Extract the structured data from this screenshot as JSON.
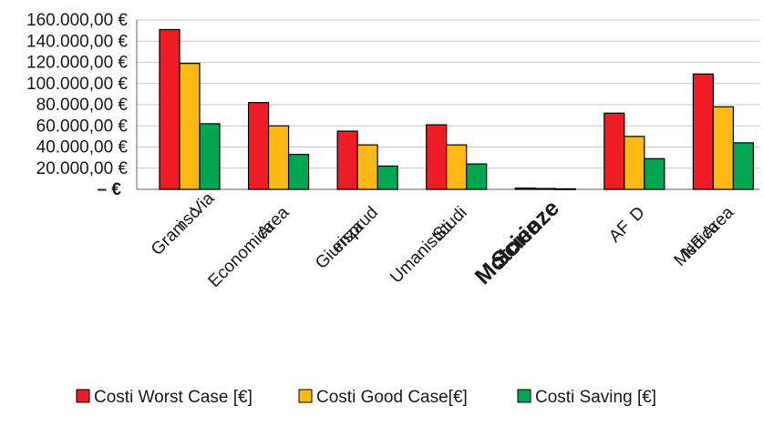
{
  "chart_data": {
    "type": "bar",
    "title": "",
    "xlabel": "",
    "ylabel": "",
    "categories": [
      [
        "Via",
        "Gramsc",
        "i"
      ],
      [
        "Area",
        "Economica"
      ],
      [
        "Giurisprud",
        "enza"
      ],
      [
        "Studi",
        "Umanistici"
      ],
      [
        "Scienze",
        "Motorie"
      ],
      [
        "D",
        "AF"
      ],
      [
        "NE Area",
        "Medica"
      ]
    ],
    "series": [
      {
        "name": "Costi Worst Case [€]",
        "color": "#ee1c25",
        "values": [
          151000,
          82000,
          55000,
          61000,
          1200,
          72000,
          109000
        ]
      },
      {
        "name": "Costi Good Case[€]",
        "color": "#fdb813",
        "values": [
          119000,
          60000,
          42000,
          42000,
          800,
          50000,
          78000
        ]
      },
      {
        "name": "Costi Saving [€]",
        "color": "#00a651",
        "values": [
          62000,
          33000,
          22000,
          24000,
          500,
          29000,
          44000
        ]
      }
    ],
    "ylim": [
      0,
      160000
    ],
    "yticks": [
      {
        "value": 160000,
        "label": "160.000,00 €"
      },
      {
        "value": 140000,
        "label": "140.000,00 €"
      },
      {
        "value": 120000,
        "label": "120.000,00 €"
      },
      {
        "value": 100000,
        "label": "100.000,00 €"
      },
      {
        "value": 80000,
        "label": "80.000,00 €"
      },
      {
        "value": 60000,
        "label": "60.000,00 €"
      },
      {
        "value": 40000,
        "label": "40.000,00 €"
      },
      {
        "value": 20000,
        "label": "20.000,00 €"
      },
      {
        "value": 0,
        "label": "–  €"
      }
    ],
    "grid": true,
    "legend_position": "bottom"
  }
}
